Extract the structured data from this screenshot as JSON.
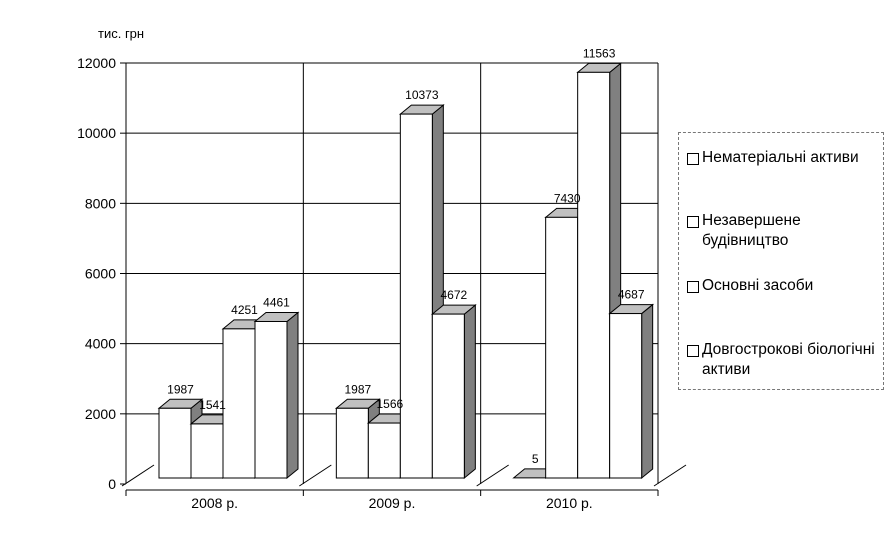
{
  "chart_data": {
    "type": "bar",
    "ylabel": "тис. грн",
    "ylim": [
      0,
      12000
    ],
    "yticks": [
      0,
      2000,
      4000,
      6000,
      8000,
      10000,
      12000
    ],
    "categories": [
      "2008 р.",
      "2009 р.",
      "2010 р."
    ],
    "series": [
      {
        "name": "Нематеріальні активи",
        "values": [
          1987,
          1987,
          5
        ],
        "labels": [
          "1987",
          "1987",
          "5"
        ]
      },
      {
        "name": "Незавершене будівництво",
        "values": [
          1541,
          1566,
          7430
        ],
        "labels": [
          "1541",
          "1566",
          "7430"
        ]
      },
      {
        "name": "Основні засоби",
        "values": [
          4251,
          10373,
          11563
        ],
        "labels": [
          "4251",
          "10373",
          "11563"
        ]
      },
      {
        "name": "Довгострокові біологічні активи",
        "values": [
          4461,
          4672,
          4687
        ],
        "labels": [
          "4461",
          "4672",
          "4687"
        ]
      }
    ],
    "legend_position": "right",
    "grid": true,
    "colors": {
      "bar_front": "#ffffff",
      "bar_top": "#c0c0c0",
      "bar_side": "#808080",
      "outline": "#000000",
      "grid": "#000000"
    }
  }
}
